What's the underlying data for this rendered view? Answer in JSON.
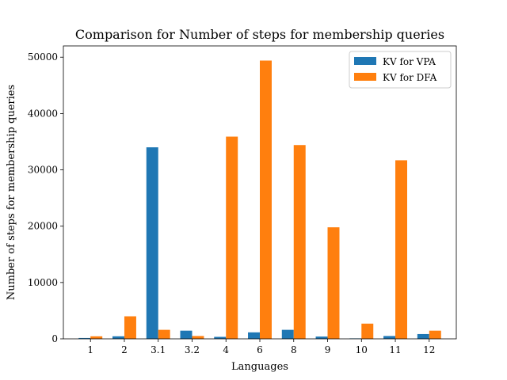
{
  "chart_data": {
    "type": "bar",
    "title": "Comparison for Number of steps for membership queries",
    "xlabel": "Languages",
    "ylabel": "Number of steps for membership queries",
    "categories": [
      "1",
      "2",
      "3.1",
      "3.2",
      "4",
      "6",
      "8",
      "9",
      "10",
      "11",
      "12"
    ],
    "ylim": [
      0,
      52000
    ],
    "yticks": [
      0,
      10000,
      20000,
      30000,
      40000,
      50000
    ],
    "grid": false,
    "legend_position": "top-right",
    "series": [
      {
        "name": "KV for VPA",
        "color": "#1f77b4",
        "values": [
          150,
          450,
          34000,
          1450,
          350,
          1150,
          1600,
          400,
          80,
          500,
          850
        ]
      },
      {
        "name": "KV for DFA",
        "color": "#ff7f0e",
        "values": [
          450,
          4000,
          1600,
          500,
          35900,
          49400,
          34400,
          19800,
          2700,
          31700,
          1450
        ]
      }
    ]
  }
}
